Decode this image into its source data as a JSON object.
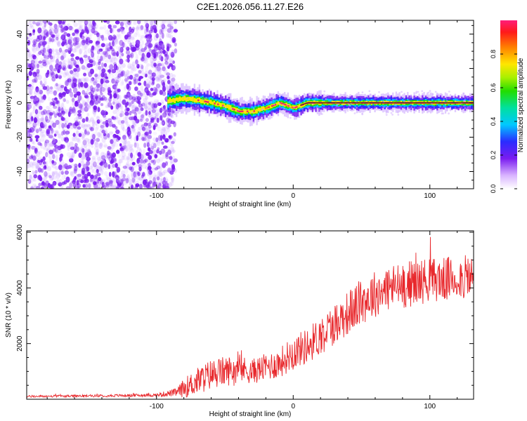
{
  "figure": {
    "title": "C2E1.2026.056.11.27.E26"
  },
  "colors": {
    "background": "#ffffff",
    "axis": "#000000",
    "snr_line": "#e8282c",
    "speckle": "#7a1cf0",
    "ridge_core": "#ee2566"
  },
  "chart_data": [
    {
      "type": "heatmap",
      "title": "C2E1.2026.056.11.27.E26",
      "xlabel": "Height of straight line (km)",
      "ylabel": "Frequency (Hz)",
      "xlim": [
        -195,
        132
      ],
      "ylim": [
        -50,
        48
      ],
      "xticks": [
        -100,
        0,
        100
      ],
      "xtick_labels": [
        "-100",
        "0",
        "100"
      ],
      "yticks": [
        -40,
        -20,
        0,
        20,
        40
      ],
      "ytick_labels": [
        "-40",
        "-20",
        "0",
        "20",
        "40"
      ],
      "grid": false,
      "noise_region_x": [
        -195,
        -88
      ],
      "ridge": [
        {
          "x": -92,
          "y": 1.0
        },
        {
          "x": -80,
          "y": 2.5
        },
        {
          "x": -70,
          "y": 1.5
        },
        {
          "x": -60,
          "y": 0.0
        },
        {
          "x": -50,
          "y": -2.0
        },
        {
          "x": -40,
          "y": -5.0
        },
        {
          "x": -30,
          "y": -5.0
        },
        {
          "x": -20,
          "y": -3.0
        },
        {
          "x": -10,
          "y": 0.0
        },
        {
          "x": 0,
          "y": -3.0
        },
        {
          "x": 10,
          "y": 0.0
        },
        {
          "x": 50,
          "y": 0.0
        },
        {
          "x": 100,
          "y": 0.0
        },
        {
          "x": 132,
          "y": 0.0
        }
      ],
      "colorbar": {
        "label": "Normalized spectral amplitude",
        "range": [
          0,
          1
        ],
        "ticks": [
          0.0,
          0.2,
          0.4,
          0.6,
          0.8
        ],
        "tick_labels": [
          "0.0",
          "0.2",
          "0.4",
          "0.6",
          "0.8"
        ]
      }
    },
    {
      "type": "line",
      "xlabel": "Height of straight line (km)",
      "ylabel": "SNR (10 * v/v)",
      "xlim": [
        -195,
        132
      ],
      "ylim": [
        0,
        6050
      ],
      "xticks": [
        -100,
        0,
        100
      ],
      "xtick_labels": [
        "-100",
        "0",
        "100"
      ],
      "yticks": [
        2000,
        4000,
        6000
      ],
      "ytick_labels": [
        "2000",
        "4000",
        "6000"
      ],
      "grid": false,
      "series": [
        {
          "name": "SNR",
          "x": [
            -195,
            -150,
            -100,
            -85,
            -80,
            -70,
            -60,
            -50,
            -40,
            -30,
            -20,
            -10,
            0,
            10,
            20,
            30,
            40,
            50,
            60,
            70,
            80,
            90,
            100,
            110,
            120,
            132
          ],
          "mean": [
            100,
            120,
            150,
            250,
            400,
            650,
            900,
            1000,
            1100,
            1000,
            1150,
            1300,
            1700,
            1900,
            2300,
            2700,
            3100,
            3500,
            3800,
            4000,
            4100,
            4200,
            4300,
            4300,
            4350,
            4400
          ],
          "amp": [
            40,
            40,
            60,
            150,
            350,
            500,
            550,
            550,
            500,
            450,
            500,
            550,
            600,
            650,
            700,
            750,
            800,
            850,
            850,
            850,
            850,
            850,
            800,
            800,
            800,
            800
          ]
        }
      ]
    }
  ]
}
